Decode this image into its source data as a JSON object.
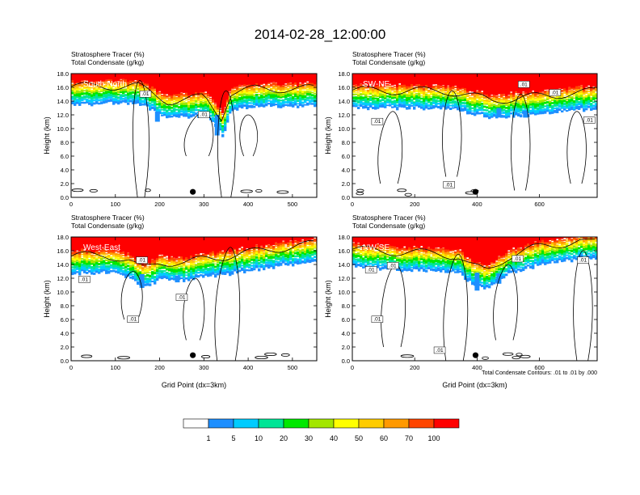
{
  "title": "2014-02-28_12:00:00",
  "colors": {
    "levels": [
      "#ffffff",
      "#1e8fff",
      "#00ccff",
      "#00e596",
      "#00e800",
      "#a3e600",
      "#ffff00",
      "#ffcc00",
      "#ff9900",
      "#ff4500",
      "#ff0000"
    ],
    "contour": "#000000",
    "frame": "#000000"
  },
  "chart_data": [
    {
      "type": "heatmap",
      "name": "South-North",
      "title_lines": [
        "Stratosphere Tracer   (%)",
        "Total Condensate   (g/kg)"
      ],
      "xlabel": "",
      "ylabel": "Height (km)",
      "xlim": [
        0,
        555
      ],
      "ylim": [
        0,
        18
      ],
      "xticks": [
        "0",
        "100",
        "200",
        "300",
        "400",
        "500"
      ],
      "yticks": [
        "0.0",
        "2.0",
        "4.0",
        "6.0",
        "8.0",
        "10.0",
        "12.0",
        "14.0",
        "16.0",
        "18.0"
      ],
      "contour_labels": [
        ".01",
        ".01"
      ],
      "tracer_base_profile": [
        {
          "x": 0,
          "y": 13.5
        },
        {
          "x": 100,
          "y": 13.6
        },
        {
          "x": 150,
          "y": 13.6
        },
        {
          "x": 180,
          "y": 12.6
        },
        {
          "x": 220,
          "y": 11.4
        },
        {
          "x": 260,
          "y": 11.6
        },
        {
          "x": 300,
          "y": 12.0
        },
        {
          "x": 340,
          "y": 9.0
        },
        {
          "x": 360,
          "y": 12.6
        },
        {
          "x": 420,
          "y": 13.2
        },
        {
          "x": 555,
          "y": 13.2
        }
      ],
      "marker_x": 275
    },
    {
      "type": "heatmap",
      "name": "SW-NE",
      "title_lines": [
        "Stratosphere Tracer   (%)",
        "Total Condensate   (g/kg)"
      ],
      "xlabel": "",
      "ylabel": "Height (km)",
      "xlim": [
        0,
        785
      ],
      "ylim": [
        0,
        18
      ],
      "xticks": [
        "0",
        "200",
        "400",
        "600"
      ],
      "yticks": [
        "0.0",
        "2.0",
        "4.0",
        "6.0",
        "8.0",
        "10.0",
        "12.0",
        "14.0",
        "16.0",
        "18.0"
      ],
      "contour_labels": [
        ".01",
        ".01",
        ".01",
        ".01",
        ".01"
      ],
      "tracer_base_profile": [
        {
          "x": 0,
          "y": 13.0
        },
        {
          "x": 150,
          "y": 12.9
        },
        {
          "x": 300,
          "y": 12.9
        },
        {
          "x": 450,
          "y": 11.5
        },
        {
          "x": 540,
          "y": 11.9
        },
        {
          "x": 640,
          "y": 12.2
        },
        {
          "x": 700,
          "y": 12.6
        },
        {
          "x": 785,
          "y": 12.8
        }
      ],
      "marker_x": 395
    },
    {
      "type": "heatmap",
      "name": "West-East",
      "title_lines": [
        "Stratosphere Tracer   (%)",
        "Total Condensate   (g/kg)"
      ],
      "xlabel": "Grid Point (dx=3km)",
      "ylabel": "Height (km)",
      "xlim": [
        0,
        555
      ],
      "ylim": [
        0,
        18
      ],
      "xticks": [
        "0",
        "100",
        "200",
        "300",
        "400",
        "500"
      ],
      "yticks": [
        "0.0",
        "2.0",
        "4.0",
        "6.0",
        "8.0",
        "10.0",
        "12.0",
        "14.0",
        "16.0",
        "18.0"
      ],
      "contour_labels": [
        ".01",
        ".01",
        ".01",
        ".01"
      ],
      "tracer_base_profile": [
        {
          "x": 0,
          "y": 12.6
        },
        {
          "x": 80,
          "y": 12.8
        },
        {
          "x": 130,
          "y": 12.0
        },
        {
          "x": 160,
          "y": 10.6
        },
        {
          "x": 200,
          "y": 11.8
        },
        {
          "x": 260,
          "y": 11.6
        },
        {
          "x": 300,
          "y": 12.2
        },
        {
          "x": 350,
          "y": 12.6
        },
        {
          "x": 450,
          "y": 13.6
        },
        {
          "x": 555,
          "y": 14.4
        }
      ],
      "marker_x": 275
    },
    {
      "type": "heatmap",
      "name": "NW-SE",
      "title_lines": [
        "Stratosphere Tracer   (%)",
        "Total Condensate   (g/kg)"
      ],
      "xlabel": "Grid Point (dx=3km)",
      "ylabel": "Height (km)",
      "xlim": [
        0,
        785
      ],
      "ylim": [
        0,
        18
      ],
      "xticks": [
        "0",
        "200",
        "400",
        "600"
      ],
      "yticks": [
        "0.0",
        "2.0",
        "4.0",
        "6.0",
        "8.0",
        "10.0",
        "12.0",
        "14.0",
        "16.0",
        "18.0"
      ],
      "contour_labels": [
        ".01",
        ".01",
        ".01",
        ".01",
        ".01",
        ".01"
      ],
      "tracer_base_profile": [
        {
          "x": 0,
          "y": 13.6
        },
        {
          "x": 150,
          "y": 13.2
        },
        {
          "x": 280,
          "y": 13.0
        },
        {
          "x": 340,
          "y": 12.6
        },
        {
          "x": 380,
          "y": 11.2
        },
        {
          "x": 430,
          "y": 10.4
        },
        {
          "x": 500,
          "y": 12.6
        },
        {
          "x": 600,
          "y": 14.0
        },
        {
          "x": 700,
          "y": 14.6
        },
        {
          "x": 785,
          "y": 15.0
        }
      ],
      "marker_x": 395
    }
  ],
  "contour_note": "Total Condensate Contours: .01 to .01 by .000",
  "colorbar": {
    "labels": [
      "1",
      "5",
      "10",
      "20",
      "30",
      "40",
      "50",
      "60",
      "70",
      "100"
    ]
  }
}
